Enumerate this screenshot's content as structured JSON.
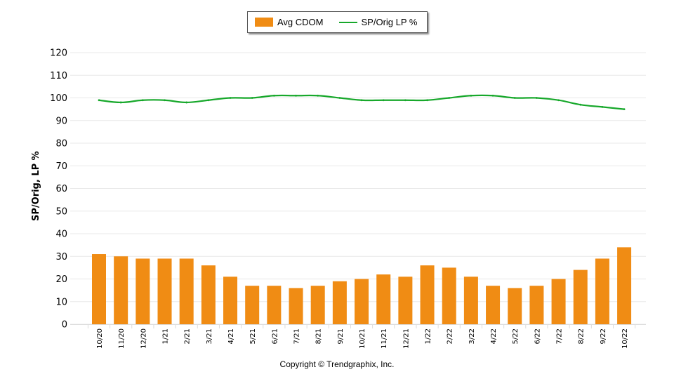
{
  "legend": {
    "bar_label": "Avg CDOM",
    "line_label": "SP/Orig LP %"
  },
  "footer": {
    "copyright": "Copyright © Trendgraphix, Inc."
  },
  "colors": {
    "bar": "#f08c14",
    "line": "#17a82b",
    "grid": "#e8e8e8"
  },
  "chart_data": {
    "type": "bar",
    "title": "",
    "xlabel": "",
    "ylabel": "SP/Orig, LP %",
    "ylim": [
      0,
      120
    ],
    "yticks": [
      0,
      10,
      20,
      30,
      40,
      50,
      60,
      70,
      80,
      90,
      100,
      110,
      120
    ],
    "grid": true,
    "legend_position": "top",
    "categories": [
      "10/20",
      "11/20",
      "12/20",
      "1/21",
      "2/21",
      "3/21",
      "4/21",
      "5/21",
      "6/21",
      "7/21",
      "8/21",
      "9/21",
      "10/21",
      "11/21",
      "12/21",
      "1/22",
      "2/22",
      "3/22",
      "4/22",
      "5/22",
      "6/22",
      "7/22",
      "8/22",
      "9/22",
      "10/22"
    ],
    "series": [
      {
        "name": "Avg CDOM",
        "type": "bar",
        "values": [
          31,
          30,
          29,
          29,
          29,
          26,
          21,
          17,
          17,
          16,
          17,
          19,
          20,
          22,
          21,
          26,
          25,
          21,
          17,
          16,
          17,
          20,
          24,
          29,
          34
        ]
      },
      {
        "name": "SP/Orig LP %",
        "type": "line",
        "values": [
          99,
          98,
          99,
          99,
          98,
          99,
          100,
          100,
          101,
          101,
          101,
          100,
          99,
          99,
          99,
          99,
          100,
          101,
          101,
          100,
          100,
          99,
          97,
          96,
          95
        ]
      }
    ]
  }
}
